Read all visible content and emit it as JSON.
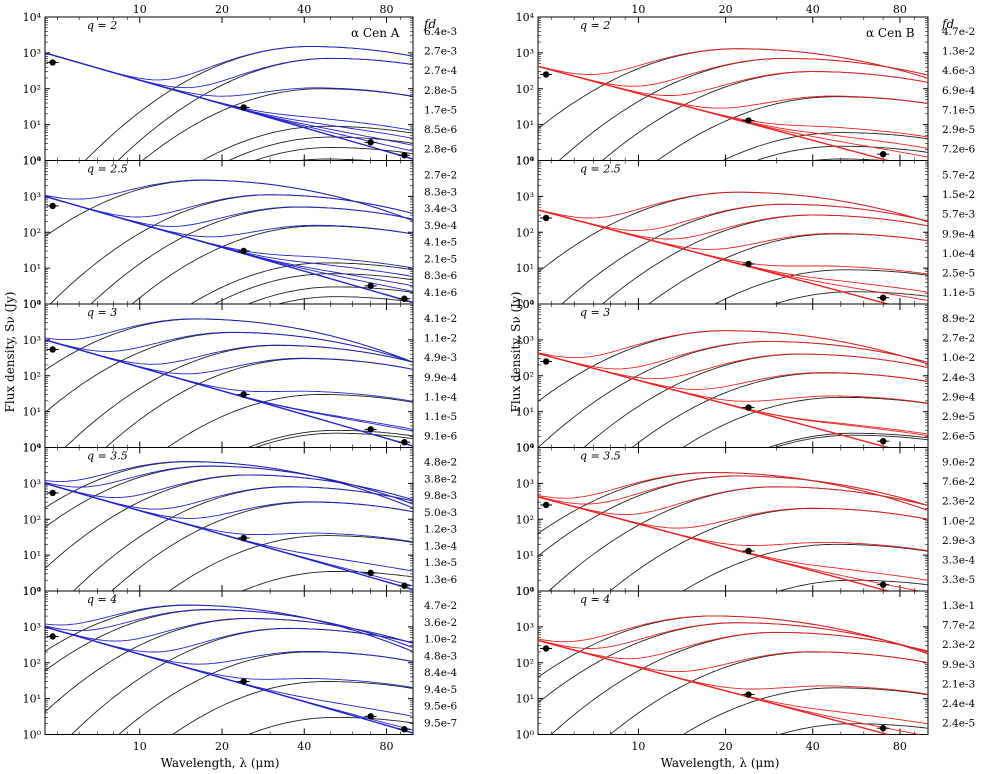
{
  "figure": {
    "xlabel": "Wavelength, λ (μm)",
    "ylabel": "Flux density, Sν (Jy)",
    "fd_header": "fd",
    "x_ticks": [
      "10",
      "20",
      "40",
      "80"
    ],
    "y_ticks": [
      "10⁰",
      "10¹",
      "10²",
      "10³",
      "10⁴"
    ]
  },
  "chart_data": [
    {
      "type": "line",
      "title": "α Cen A",
      "color": "#2222cc",
      "xlabel": "Wavelength, λ (μm)",
      "ylabel": "Flux density, Sν (Jy)",
      "xscale": "log",
      "xlim": [
        4.5,
        100
      ],
      "yscale": "log",
      "ylim": [
        1,
        10000
      ],
      "stellar_photosphere": {
        "x": [
          4.5,
          100
        ],
        "y": [
          1000,
          1.1
        ]
      },
      "observed_points": [
        {
          "x": 4.8,
          "y": 540
        },
        {
          "x": 24,
          "y": 30
        },
        {
          "x": 70,
          "y": 3.2
        },
        {
          "x": 93,
          "y": 1.4
        }
      ],
      "panels": [
        {
          "q_label": "q = 2",
          "fd_labels": [
            "6.4e-3",
            "2.7e-3",
            "2.7e-4",
            "2.8e-5",
            "1.7e-5",
            "8.5e-6",
            "2.8e-6"
          ],
          "peak_flux": [
            1500,
            700,
            100,
            9,
            4.5,
            2.3,
            1.1
          ],
          "peak_wavelength": [
            42,
            50,
            46,
            48,
            50,
            50,
            48
          ]
        },
        {
          "q_label": "q = 2.5",
          "fd_labels": [
            "2.7e-2",
            "8.3e-3",
            "3.4e-3",
            "3.9e-4",
            "4.1e-5",
            "2.1e-5",
            "8.3e-6",
            "4.1e-6"
          ],
          "peak_flux": [
            2800,
            1100,
            500,
            150,
            14,
            7,
            3,
            1.6
          ],
          "peak_wavelength": [
            17,
            30,
            38,
            45,
            48,
            50,
            52,
            52
          ]
        },
        {
          "q_label": "q = 3",
          "fd_labels": [
            "4.1e-2",
            "1.1e-2",
            "4.9e-3",
            "9.9e-4",
            "1.1e-4",
            "1.1e-5",
            "9.1e-6"
          ],
          "peak_flux": [
            3800,
            1600,
            700,
            300,
            30,
            3,
            2.5
          ],
          "peak_wavelength": [
            16,
            22,
            32,
            40,
            46,
            52,
            52
          ]
        },
        {
          "q_label": "q = 3.5",
          "fd_labels": [
            "4.8e-2",
            "3.8e-2",
            "9.8e-3",
            "5.0e-3",
            "1.2e-3",
            "1.3e-4",
            "1.3e-5",
            "1.3e-6"
          ],
          "peak_flux": [
            4000,
            3000,
            1700,
            800,
            300,
            35,
            3.5,
            0.4
          ],
          "peak_wavelength": [
            15,
            18,
            25,
            35,
            42,
            48,
            52,
            55
          ]
        },
        {
          "q_label": "q = 4",
          "fd_labels": [
            "4.7e-2",
            "3.6e-2",
            "1.0e-2",
            "4.8e-3",
            "8.4e-4",
            "9.4e-5",
            "9.5e-6",
            "9.5e-7"
          ],
          "peak_flux": [
            4000,
            3000,
            1700,
            900,
            200,
            30,
            3,
            0.3
          ],
          "peak_wavelength": [
            15,
            18,
            25,
            35,
            42,
            48,
            52,
            55
          ]
        }
      ]
    },
    {
      "type": "line",
      "title": "α Cen B",
      "color": "#ee2222",
      "xlabel": "Wavelength, λ (μm)",
      "ylabel": "Flux density, Sν (Jy)",
      "xscale": "log",
      "xlim": [
        4.5,
        100
      ],
      "yscale": "log",
      "ylim": [
        1,
        10000
      ],
      "stellar_photosphere": {
        "x": [
          4.5,
          100
        ],
        "y": [
          420,
          0.5
        ]
      },
      "observed_points": [
        {
          "x": 4.8,
          "y": 250
        },
        {
          "x": 24,
          "y": 13
        },
        {
          "x": 70,
          "y": 1.5
        }
      ],
      "panels": [
        {
          "q_label": "q = 2",
          "fd_labels": [
            "4.7e-2",
            "1.3e-2",
            "4.6e-3",
            "6.9e-4",
            "7.1e-5",
            "2.9e-5",
            "7.2e-6"
          ],
          "peak_flux": [
            1300,
            700,
            300,
            60,
            6,
            2.5,
            1.1
          ],
          "peak_wavelength": [
            22,
            32,
            40,
            48,
            50,
            50,
            50
          ]
        },
        {
          "q_label": "q = 2.5",
          "fd_labels": [
            "5.7e-2",
            "1.5e-2",
            "5.7e-3",
            "9.9e-4",
            "1.0e-4",
            "2.5e-5",
            "1.1e-5"
          ],
          "peak_flux": [
            1300,
            600,
            300,
            90,
            9,
            2.2,
            1
          ],
          "peak_wavelength": [
            22,
            32,
            40,
            48,
            52,
            55,
            55
          ]
        },
        {
          "q_label": "q = 3",
          "fd_labels": [
            "8.9e-2",
            "2.7e-2",
            "1.0e-2",
            "2.4e-3",
            "2.9e-4",
            "2.9e-5",
            "2.6e-5"
          ],
          "peak_flux": [
            1800,
            900,
            400,
            120,
            25,
            2.5,
            2.2
          ],
          "peak_wavelength": [
            20,
            28,
            36,
            44,
            50,
            55,
            55
          ]
        },
        {
          "q_label": "q = 3.5",
          "fd_labels": [
            "9.0e-2",
            "7.6e-2",
            "2.3e-2",
            "1.0e-2",
            "2.9e-3",
            "3.3e-4",
            "3.3e-5"
          ],
          "peak_flux": [
            2000,
            1600,
            800,
            200,
            20,
            2,
            0.5
          ],
          "peak_wavelength": [
            18,
            22,
            30,
            40,
            48,
            55,
            58
          ]
        },
        {
          "q_label": "q = 4",
          "fd_labels": [
            "1.3e-1",
            "7.7e-2",
            "2.3e-2",
            "9.9e-3",
            "2.1e-3",
            "2.4e-4",
            "2.4e-5"
          ],
          "peak_flux": [
            2000,
            1300,
            700,
            200,
            20,
            2,
            0.5
          ],
          "peak_wavelength": [
            18,
            22,
            30,
            40,
            48,
            55,
            58
          ]
        }
      ]
    }
  ]
}
